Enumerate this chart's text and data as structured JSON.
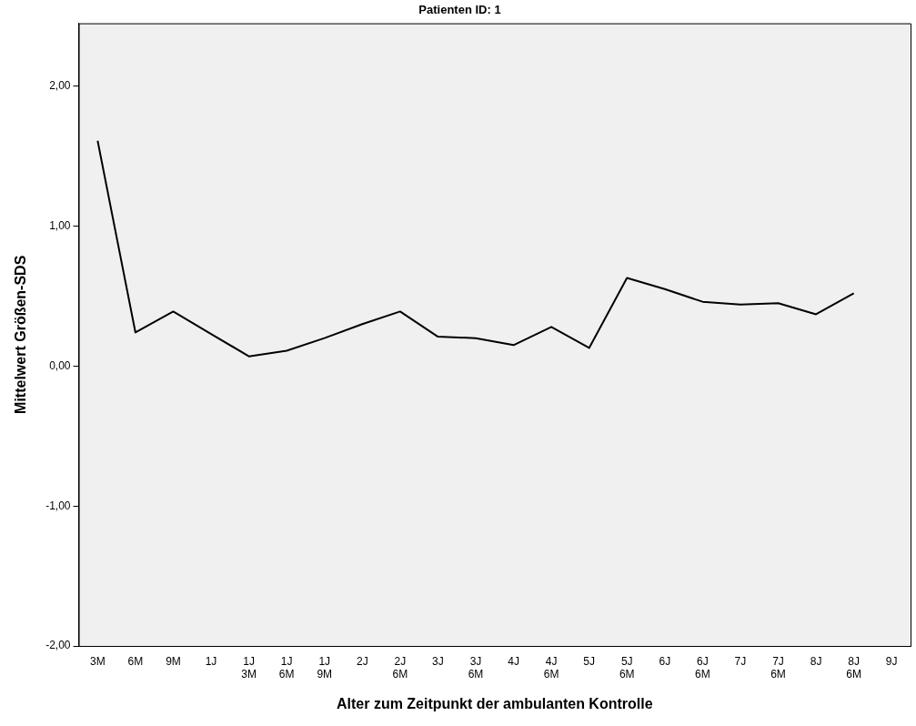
{
  "chart_data": {
    "type": "line",
    "title": "Patienten ID: 1",
    "xlabel": "Alter zum Zeitpunkt der ambulanten Kontrolle",
    "ylabel": "Mittelwert Größen-SDS",
    "categories": [
      "3M",
      "6M",
      "9M",
      "1J",
      "1J 3M",
      "1J 6M",
      "1J 9M",
      "2J",
      "2J 6M",
      "3J",
      "3J 6M",
      "4J",
      "4J 6M",
      "5J",
      "5J 6M",
      "6J",
      "6J 6M",
      "7J",
      "7J 6M",
      "8J",
      "8J 6M",
      "9J"
    ],
    "series": [
      {
        "color": "#000000",
        "values": [
          1.61,
          0.24,
          0.39,
          0.23,
          0.07,
          0.11,
          0.2,
          0.3,
          0.39,
          0.21,
          0.2,
          0.15,
          0.28,
          0.13,
          0.63,
          0.55,
          0.46,
          0.44,
          0.45,
          0.37,
          0.52,
          null
        ]
      }
    ],
    "ylim": [
      -2,
      2.45
    ],
    "yticks": [
      {
        "value": -2,
        "label": "-2,00"
      },
      {
        "value": -1,
        "label": "-1,00"
      },
      {
        "value": 0,
        "label": "0,00"
      },
      {
        "value": 1,
        "label": "1,00"
      },
      {
        "value": 2,
        "label": "2,00"
      }
    ],
    "grid": false,
    "legend": false,
    "marker": "none",
    "line_style": "solid"
  }
}
